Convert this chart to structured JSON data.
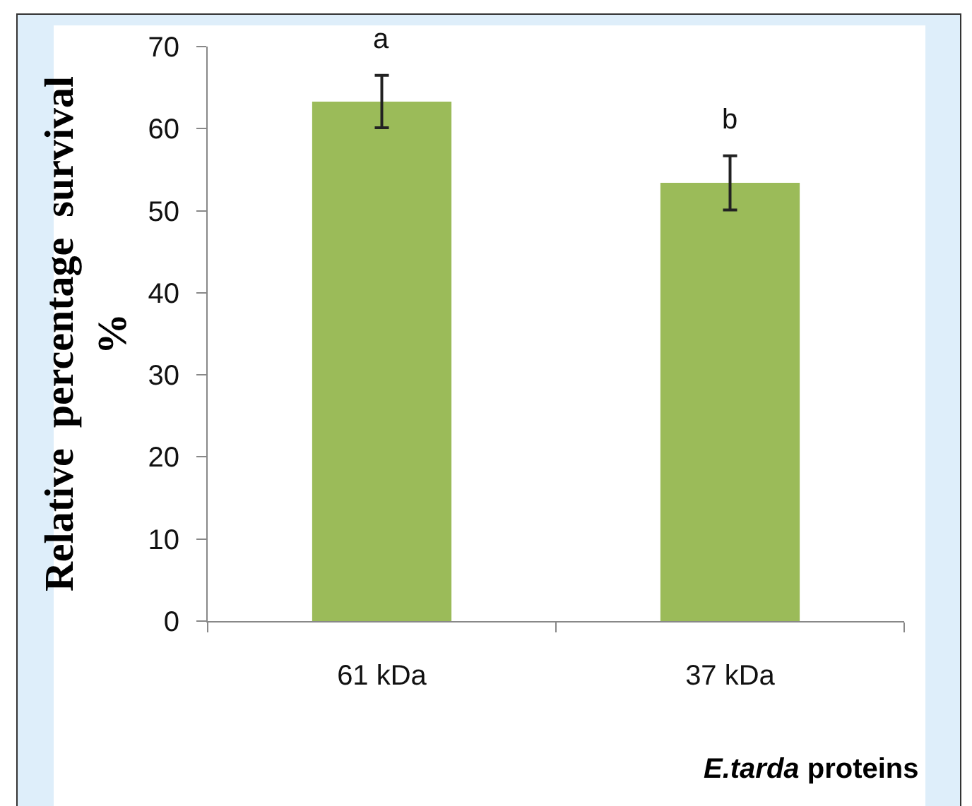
{
  "chart_data": {
    "type": "bar",
    "categories": [
      "61 kDa",
      "37 kDa"
    ],
    "values": [
      63.3,
      53.4
    ],
    "errors": [
      3.2,
      3.3
    ],
    "color": "#9bbb59",
    "ylabel": "Relative  percentage  survival\n%",
    "xlabel": "E.tarda proteins",
    "ylim": [
      0,
      70
    ],
    "yticks": [
      0,
      10,
      20,
      30,
      40,
      50,
      60,
      70
    ],
    "annotations": [
      "a",
      "b"
    ]
  }
}
